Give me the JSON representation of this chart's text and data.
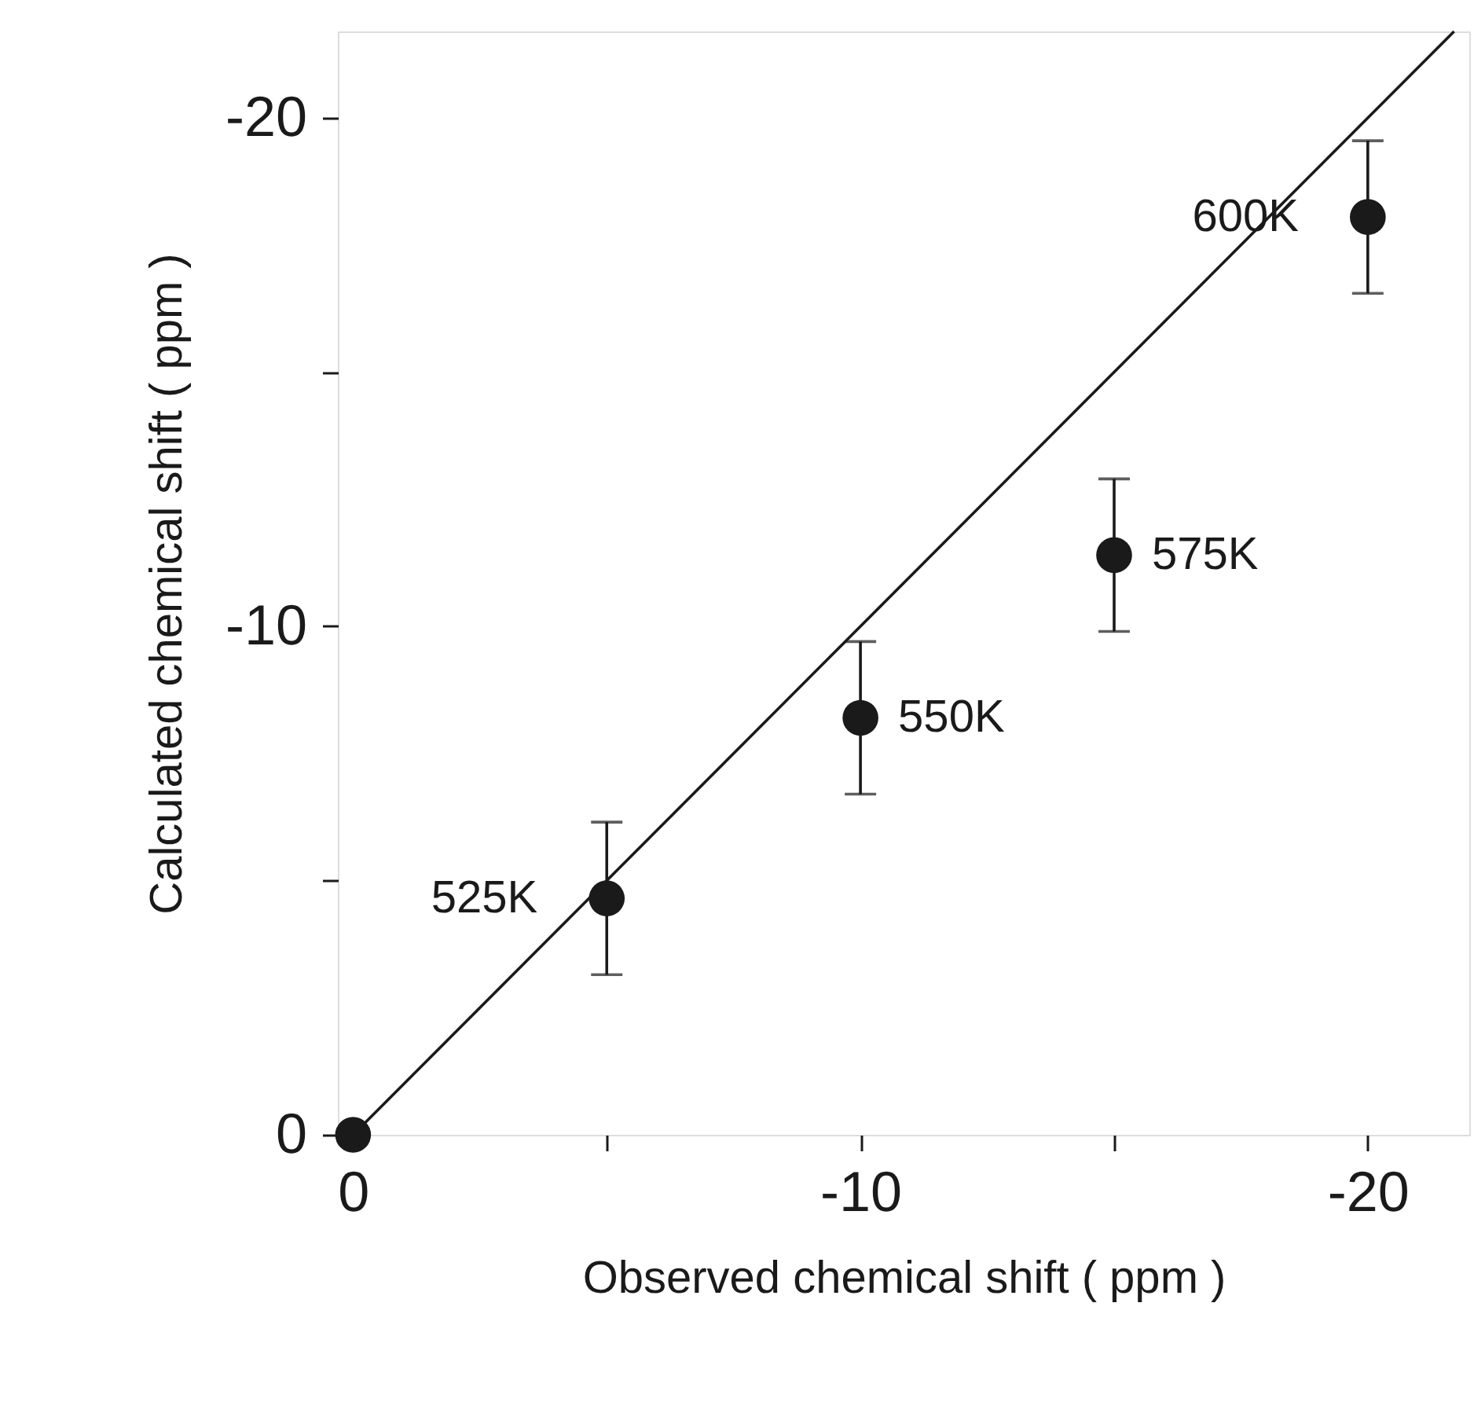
{
  "chart_data": {
    "type": "scatter",
    "xlabel": "Observed chemical shift ( ppm )",
    "ylabel": "Calculated chemical shift ( ppm )",
    "xlim": [
      0.3,
      -22
    ],
    "ylim": [
      0,
      -21.7
    ],
    "xticks": [
      0,
      {
        "value": -5,
        "label": null
      },
      -10,
      {
        "value": -15,
        "label": null
      },
      -20
    ],
    "yticks": [
      0,
      {
        "value": -5,
        "label": null
      },
      -10,
      {
        "value": -15,
        "label": null
      },
      -20
    ],
    "grid": false,
    "marker": "circle",
    "series": [
      {
        "color": "#1a1a1a",
        "x": [
          0,
          -5,
          -10,
          -15,
          -20
        ],
        "values": [
          0,
          -4.65,
          -8.2,
          -11.4,
          -18.05
        ],
        "errors": [
          null,
          1.5,
          1.5,
          1.5,
          1.5
        ]
      },
      {
        "type": "line",
        "color": "#1a1a1a",
        "marker": "none",
        "x": [
          0,
          -21.7
        ],
        "values": [
          0,
          -21.7
        ]
      }
    ],
    "annotations": [
      {
        "text": "525K",
        "x": -5,
        "y": -4.65
      },
      {
        "text": "550K",
        "x": -10,
        "y": -8.2
      },
      {
        "text": "575K",
        "x": -15,
        "y": -11.4
      },
      {
        "text": "600K",
        "x": -20,
        "y": -18.05
      }
    ]
  }
}
